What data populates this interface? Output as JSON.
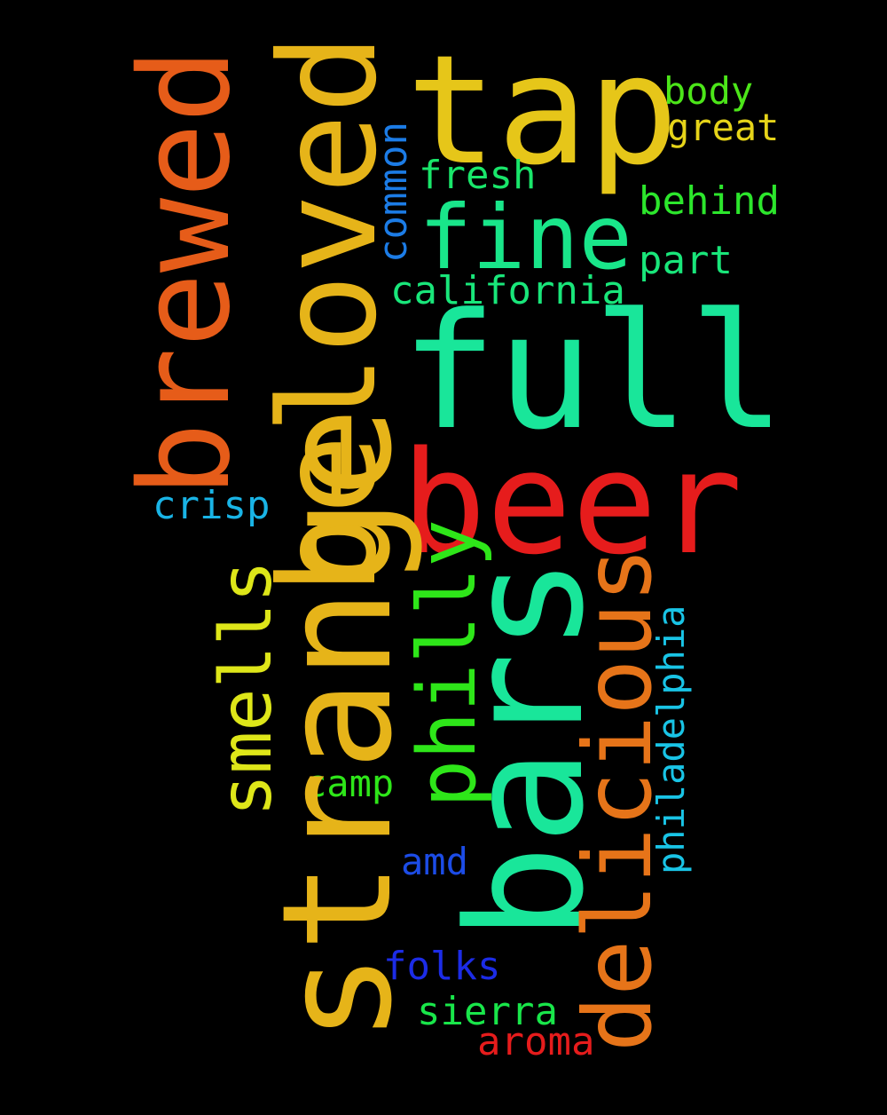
{
  "words": {
    "tap": {
      "text": "tap",
      "color": "#e6c619"
    },
    "full": {
      "text": "full",
      "color": "#19e69a"
    },
    "beer": {
      "text": "beer",
      "color": "#e61c1c"
    },
    "fine": {
      "text": "fine",
      "color": "#19e68a"
    },
    "body": {
      "text": "body",
      "color": "#4ce619"
    },
    "great": {
      "text": "great",
      "color": "#e6d419"
    },
    "fresh": {
      "text": "fresh",
      "color": "#19e66a"
    },
    "behind": {
      "text": "behind",
      "color": "#2ce62c"
    },
    "part": {
      "text": "part",
      "color": "#19e67a"
    },
    "california": {
      "text": "california",
      "color": "#19e67a"
    },
    "crisp": {
      "text": "crisp",
      "color": "#19b4e6"
    },
    "camp": {
      "text": "camp",
      "color": "#2ee619"
    },
    "amd": {
      "text": "amd",
      "color": "#1c4ce6"
    },
    "folks": {
      "text": "folks",
      "color": "#1c2ce6"
    },
    "sierra": {
      "text": "sierra",
      "color": "#19e64a"
    },
    "aroma": {
      "text": "aroma",
      "color": "#e61c1c"
    },
    "brewed": {
      "text": "brewed",
      "color": "#e65c19"
    },
    "beloved": {
      "text": "beloved",
      "color": "#e6b419"
    },
    "strange": {
      "text": "strange",
      "color": "#e6b419"
    },
    "bars": {
      "text": "bars",
      "color": "#19e69a"
    },
    "smells": {
      "text": "smells",
      "color": "#dee619"
    },
    "philly": {
      "text": "philly",
      "color": "#2ee619"
    },
    "delicious": {
      "text": "delicious",
      "color": "#e67419"
    },
    "philadelphia": {
      "text": "philadelphia",
      "color": "#19c4e6"
    },
    "common": {
      "text": "common",
      "color": "#1c7ce6"
    }
  }
}
